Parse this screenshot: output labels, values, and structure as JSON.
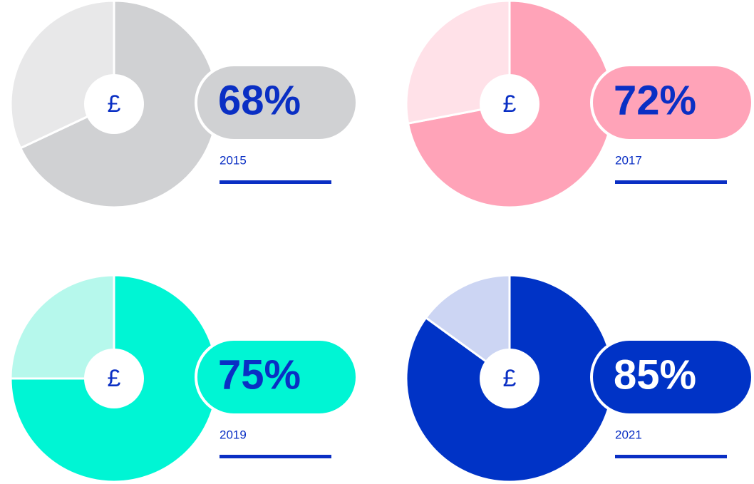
{
  "chart_data": [
    {
      "type": "pie",
      "title": "2015",
      "symbol": "£",
      "values": [
        68,
        32
      ],
      "value_labels": [
        "68%",
        null
      ],
      "colors": [
        "#d0d1d3",
        "#e8e8e9"
      ],
      "label_color": "#0a2fc4"
    },
    {
      "type": "pie",
      "title": "2017",
      "symbol": "£",
      "values": [
        72,
        28
      ],
      "value_labels": [
        "72%",
        null
      ],
      "colors": [
        "#ffa3b8",
        "#ffe1e8"
      ],
      "label_color": "#0a2fc4"
    },
    {
      "type": "pie",
      "title": "2019",
      "symbol": "£",
      "values": [
        75,
        25
      ],
      "value_labels": [
        "75%",
        null
      ],
      "colors": [
        "#00f5d4",
        "#b6f8ec"
      ],
      "label_color": "#0a2fc4"
    },
    {
      "type": "pie",
      "title": "2021",
      "symbol": "£",
      "values": [
        85,
        15
      ],
      "value_labels": [
        "85%",
        null
      ],
      "colors": [
        "#0033c6",
        "#ccd5f3"
      ],
      "label_color": "#ffffff"
    }
  ]
}
